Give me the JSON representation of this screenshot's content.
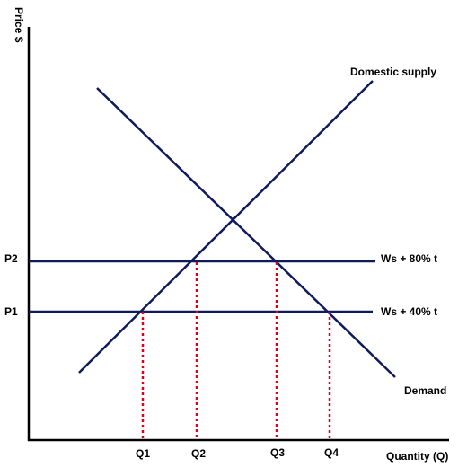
{
  "axes": {
    "y_label": "Price $",
    "x_label": "Quantity (Q)"
  },
  "curves": {
    "supply_label": "Domestic supply",
    "demand_label": "Demand"
  },
  "price_lines": [
    {
      "price_label": "P2",
      "line_label": "Ws + 80% t"
    },
    {
      "price_label": "P1",
      "line_label": "Ws + 40% t"
    }
  ],
  "quantities": [
    "Q1",
    "Q2",
    "Q3",
    "Q4"
  ],
  "colors": {
    "curve": "#0f1a5c",
    "dashed_drop": "#e0001a",
    "axis": "#000000"
  }
}
